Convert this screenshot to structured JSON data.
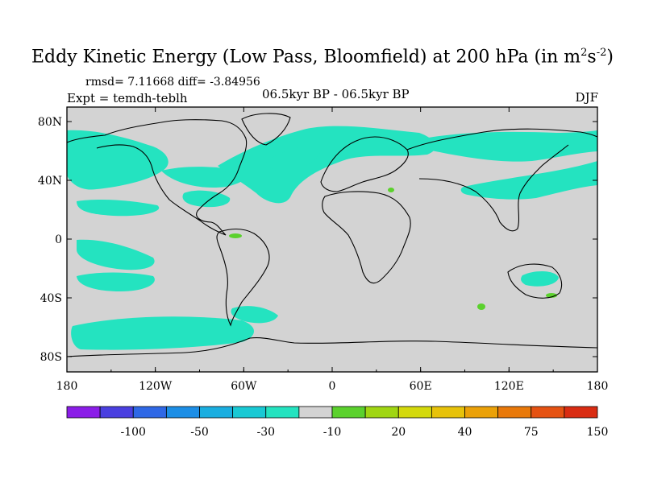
{
  "title": {
    "main": "Eddy Kinetic Energy (Low Pass, Bloomfield) at 200 hPa (in m",
    "sup1": "2",
    "mid": "s",
    "sup2": "-2",
    "end": ")"
  },
  "stats": "rmsd= 7.11668 diff= -3.84956",
  "experiment": "Expt = temdh-teblh",
  "period": "06.5kyr BP - 06.5kyr BP",
  "season": "DJF",
  "map": {
    "lon_ticks": [
      "180",
      "120W",
      "60W",
      "0",
      "60E",
      "120E",
      "180"
    ],
    "lat_ticks": [
      "80N",
      "40N",
      "0",
      "40S",
      "80S"
    ],
    "ocean_land_color": "#d3d3d3",
    "anomaly_color": "#24e3c0"
  },
  "colorbar": {
    "colors": [
      "#8b1de8",
      "#4a3fe0",
      "#2f68e6",
      "#1c8ee6",
      "#1aaee0",
      "#19c9d4",
      "#24e3c0",
      "#d3d3d3",
      "#5bd12d",
      "#a0d612",
      "#d4d90c",
      "#e7c20a",
      "#eba108",
      "#e9790a",
      "#e55212",
      "#d92c12"
    ],
    "labels": [
      "-100",
      "-50",
      "-30",
      "-10",
      "20",
      "40",
      "75",
      "150"
    ]
  }
}
